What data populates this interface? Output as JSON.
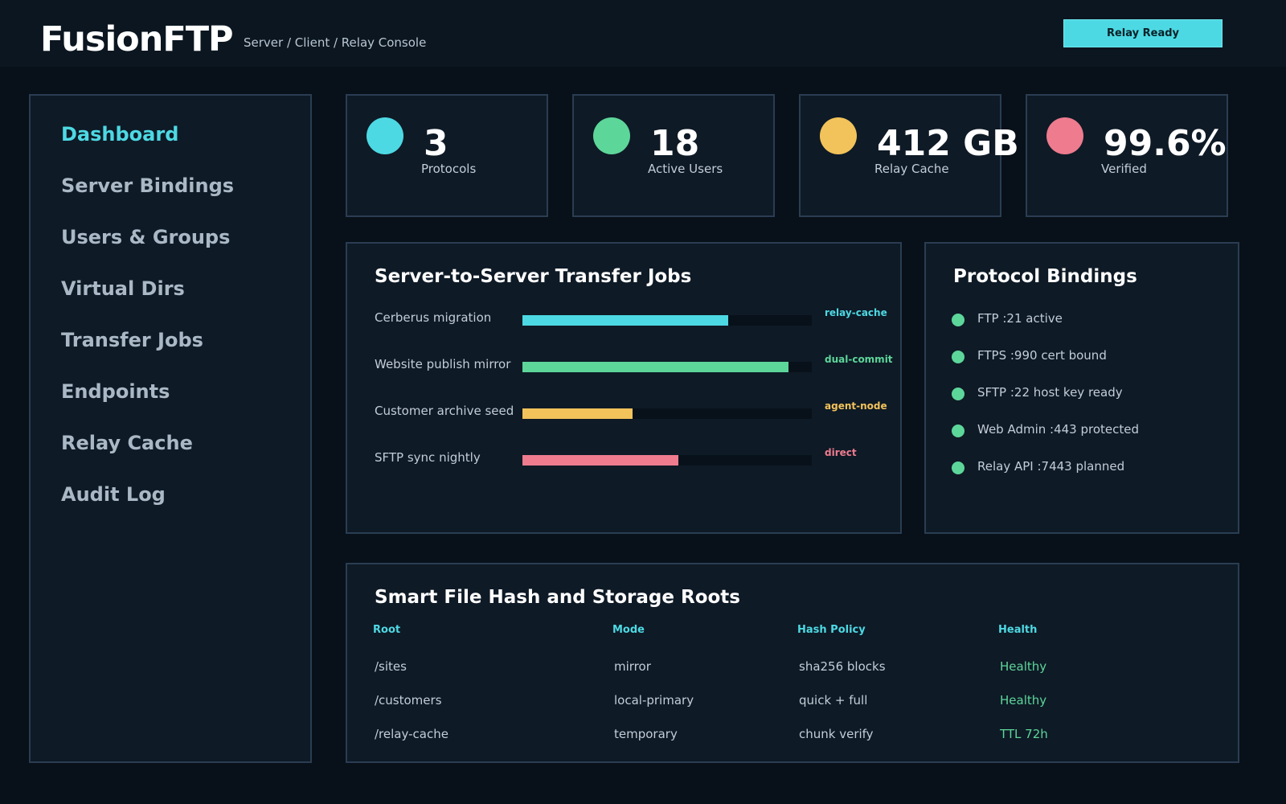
{
  "header": {
    "title": "FusionFTP",
    "subtitle": "Server / Client / Relay Console",
    "status_button": "Relay Ready"
  },
  "sidebar": {
    "items": [
      {
        "label": "Dashboard",
        "active": true
      },
      {
        "label": "Server Bindings",
        "active": false
      },
      {
        "label": "Users & Groups",
        "active": false
      },
      {
        "label": "Virtual Dirs",
        "active": false
      },
      {
        "label": "Transfer Jobs",
        "active": false
      },
      {
        "label": "Endpoints",
        "active": false
      },
      {
        "label": "Relay Cache",
        "active": false
      },
      {
        "label": "Audit Log",
        "active": false
      }
    ]
  },
  "stats": [
    {
      "value": "3",
      "label": "Protocols",
      "color": "#4dd9e3"
    },
    {
      "value": "18",
      "label": "Active Users",
      "color": "#5dd69a"
    },
    {
      "value": "412 GB",
      "label": "Relay Cache",
      "color": "#f2c35a"
    },
    {
      "value": "99.6%",
      "label": "Verified",
      "color": "#ee7b8e"
    }
  ],
  "jobs": {
    "title": "Server-to-Server Transfer Jobs",
    "items": [
      {
        "name": "Cerberus migration",
        "progress": 0.71,
        "tag": "relay-cache",
        "color": "#4dd9e3"
      },
      {
        "name": "Website publish mirror",
        "progress": 0.92,
        "tag": "dual-commit",
        "color": "#5dd69a"
      },
      {
        "name": "Customer archive seed",
        "progress": 0.38,
        "tag": "agent-node",
        "color": "#f2c35a"
      },
      {
        "name": "SFTP sync nightly",
        "progress": 0.54,
        "tag": "direct",
        "color": "#ee7b8e"
      }
    ]
  },
  "bindings": {
    "title": "Protocol Bindings",
    "items": [
      {
        "label": "FTP :21 active",
        "color": "#5dd69a"
      },
      {
        "label": "FTPS :990 cert bound",
        "color": "#5dd69a"
      },
      {
        "label": "SFTP :22 host key ready",
        "color": "#5dd69a"
      },
      {
        "label": "Web Admin :443 protected",
        "color": "#5dd69a"
      },
      {
        "label": "Relay API :7443 planned",
        "color": "#5dd69a"
      }
    ]
  },
  "roots": {
    "title": "Smart File Hash and Storage Roots",
    "columns": [
      "Root",
      "Mode",
      "Hash Policy",
      "Health"
    ],
    "rows": [
      [
        "/sites",
        "mirror",
        "sha256 blocks",
        "Healthy"
      ],
      [
        "/customers",
        "local-primary",
        "quick + full",
        "Healthy"
      ],
      [
        "/relay-cache",
        "temporary",
        "chunk verify",
        "TTL 72h"
      ]
    ]
  }
}
